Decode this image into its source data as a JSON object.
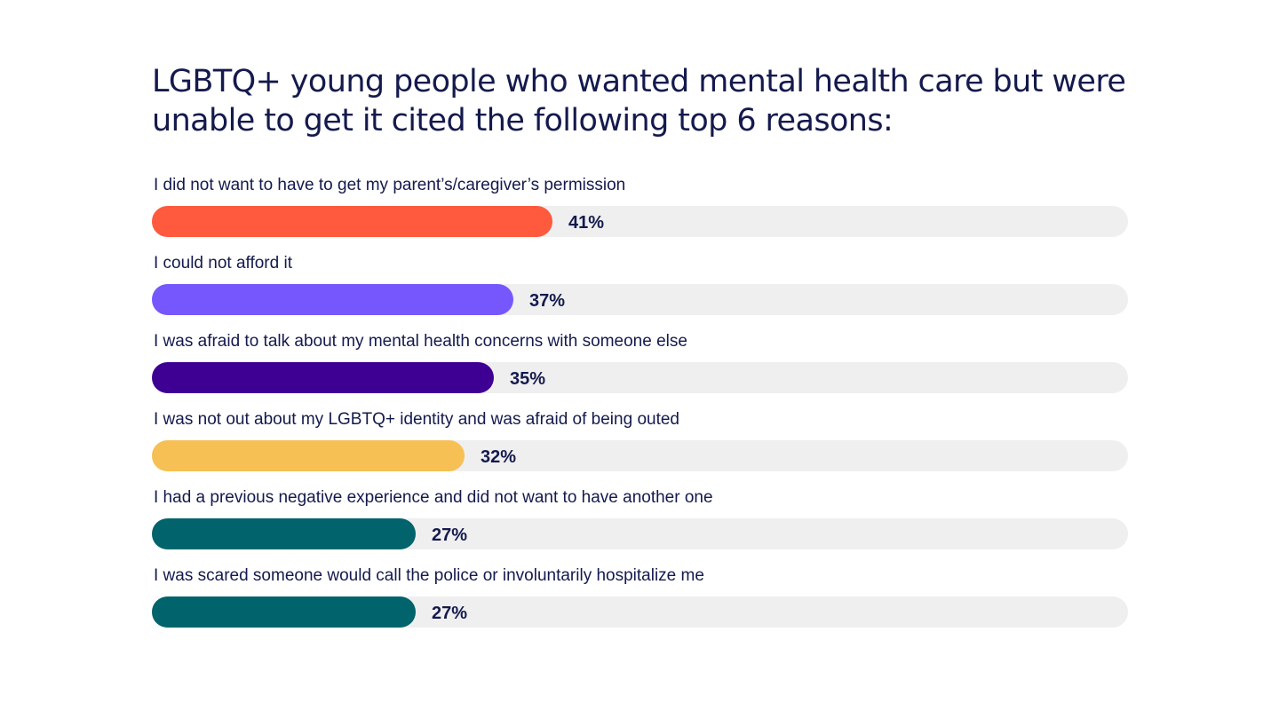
{
  "title": "LGBTQ+ young people who wanted mental health care but were unable to get it cited the following top 6 reasons:",
  "chart_data": {
    "type": "bar",
    "orientation": "horizontal",
    "title": "LGBTQ+ young people who wanted mental health care but were unable to get it cited the following top 6 reasons:",
    "xlim": [
      0,
      100
    ],
    "grid": false,
    "legend": "none",
    "categories": [
      "I did not want to have to get my parent’s/caregiver’s permission",
      "I could not afford it",
      "I was afraid to talk about my mental health concerns with someone else",
      "I was not out about my LGBTQ+ identity and was afraid of being outed",
      "I had a previous negative experience and did not want to have another one",
      "I was scared someone would call the police or involuntarily hospitalize me"
    ],
    "values": [
      41,
      37,
      35,
      32,
      27,
      27
    ],
    "value_labels": [
      "41%",
      "37%",
      "35%",
      "32%",
      "27%",
      "27%"
    ],
    "colors": [
      "#ff5a3d",
      "#7557fd",
      "#3d0093",
      "#f6c054",
      "#01636b",
      "#01636b"
    ],
    "track_color": "#efefef"
  }
}
